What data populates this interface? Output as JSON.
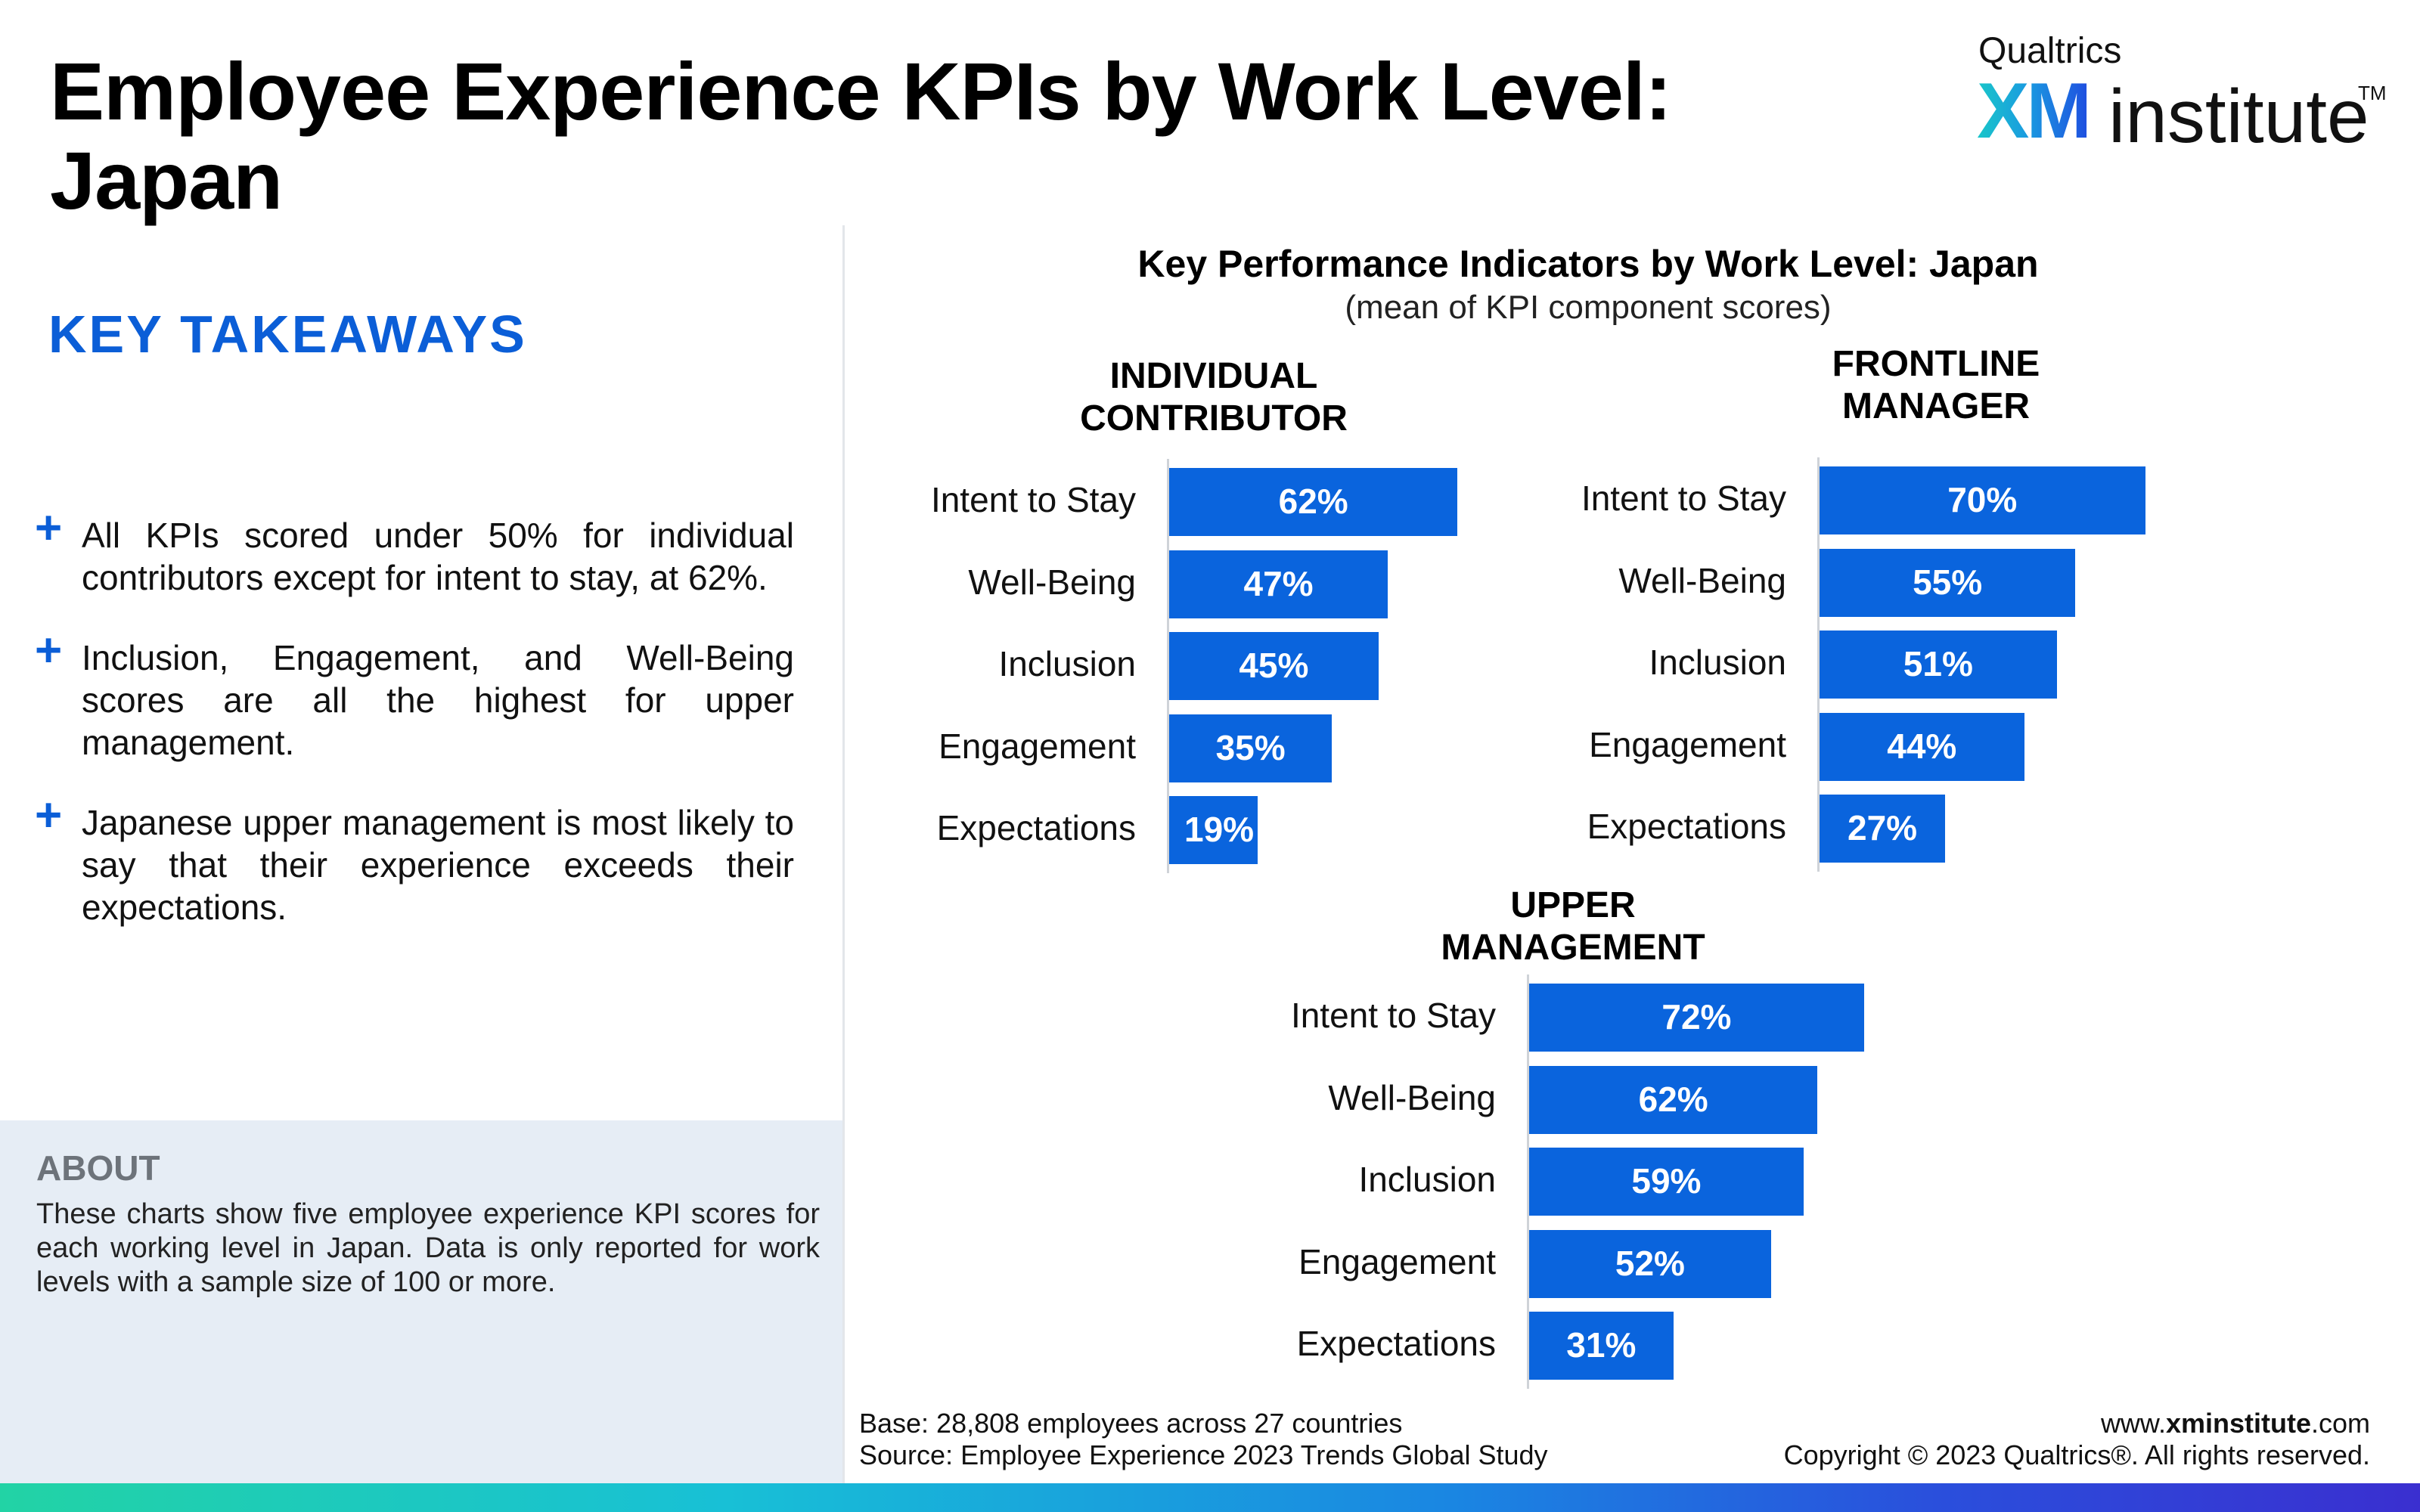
{
  "page": {
    "title": "Employee Experience KPIs by Work Level: Japan"
  },
  "logo": {
    "top": "Qualtrics",
    "xm": "XM",
    "institute": "institute",
    "tm": "TM"
  },
  "takeaways": {
    "heading": "KEY TAKEAWAYS",
    "items": [
      "All KPIs scored under 50% for individual contributors except for intent to stay, at 62%.",
      "Inclusion, Engagement, and Well-Being scores are all the highest for upper management.",
      "Japanese upper management is most likely to say that their experience exceeds their expectations."
    ]
  },
  "about": {
    "heading": "ABOUT",
    "text": "These charts show five employee experience KPI scores for each working level in Japan. Data is only reported for work levels with a sample size of 100 or more."
  },
  "chart_data": {
    "type": "bar",
    "orientation": "horizontal",
    "title": "Key Performance Indicators by Work Level: Japan",
    "subtitle": "(mean of KPI component scores)",
    "categories": [
      "Intent to Stay",
      "Well-Being",
      "Inclusion",
      "Engagement",
      "Expectations"
    ],
    "xlim": [
      0,
      100
    ],
    "grid": false,
    "unit": "%",
    "bar_color": "#0a64dd",
    "series": [
      {
        "name": "INDIVIDUAL CONTRIBUTOR",
        "values": [
          62,
          47,
          45,
          35,
          19
        ]
      },
      {
        "name": "FRONTLINE MANAGER",
        "values": [
          70,
          55,
          51,
          44,
          27
        ]
      },
      {
        "name": "UPPER MANAGEMENT",
        "values": [
          72,
          62,
          59,
          52,
          31
        ]
      }
    ]
  },
  "footer": {
    "base": "Base: 28,808 employees across 27 countries",
    "source": "Source: Employee Experience 2023 Trends Global Study",
    "website_prefix": "www.",
    "website_bold": "xminstitute",
    "website_suffix": ".com",
    "copyright": "Copyright © 2023 Qualtrics®. All rights reserved."
  },
  "colors": {
    "accent": "#0b5ed7",
    "bar": "#0a64dd",
    "about_bg": "#e6edf5"
  }
}
